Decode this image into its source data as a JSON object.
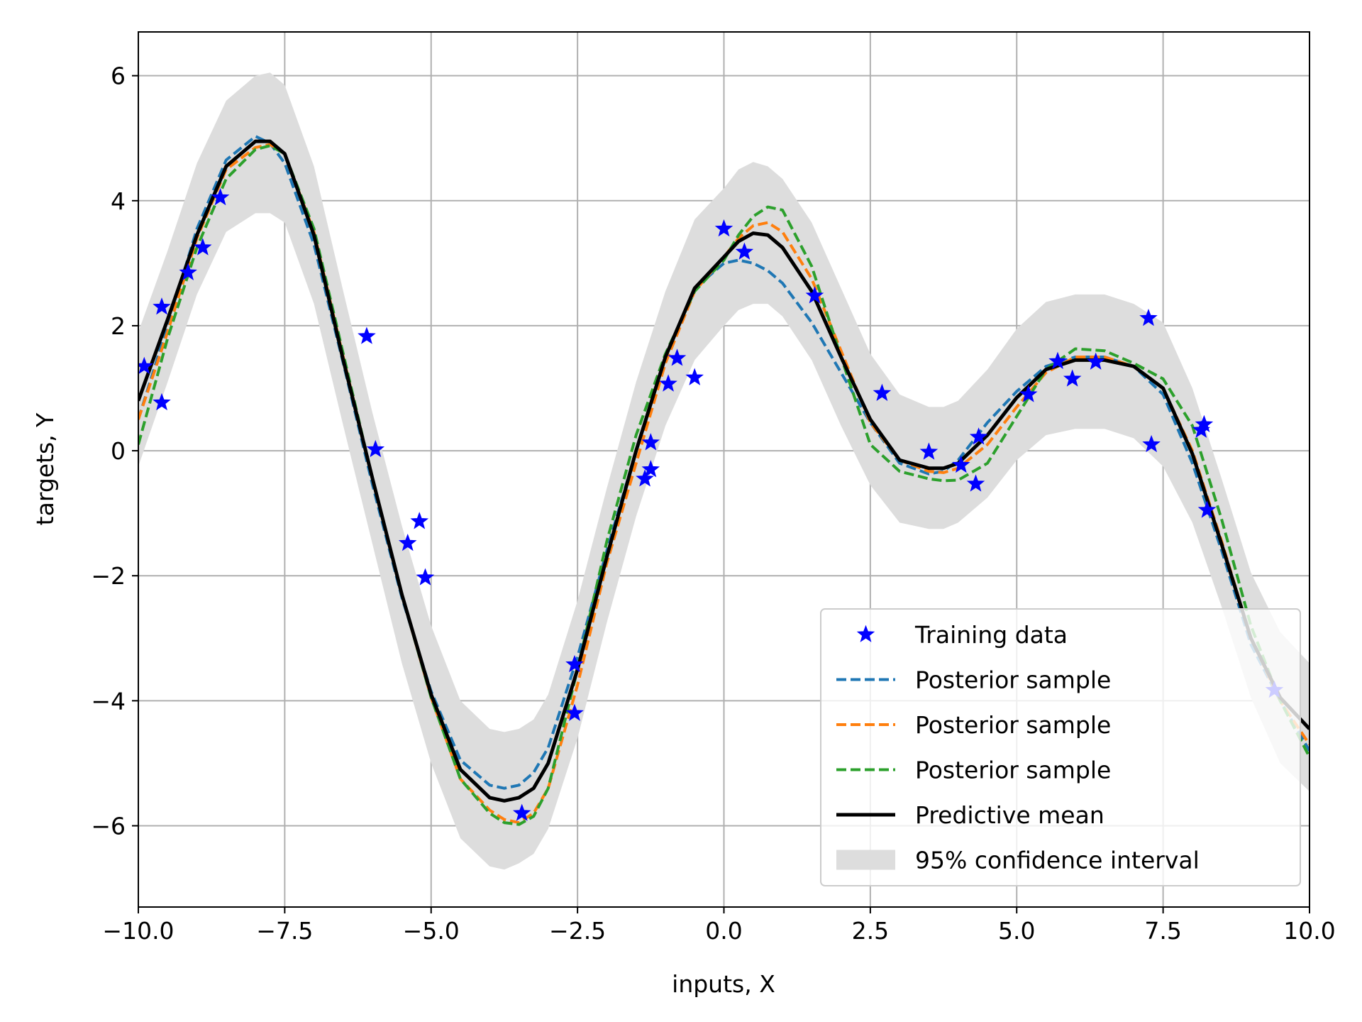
{
  "chart_data": {
    "type": "line",
    "title": "",
    "xlabel": "inputs, X",
    "ylabel": "targets, Y",
    "xlim": [
      -10,
      10
    ],
    "ylim": [
      -7.3,
      6.7
    ],
    "xticks": [
      -10,
      -7.5,
      -5,
      -2.5,
      0,
      2.5,
      5,
      7.5,
      10
    ],
    "xtick_labels": [
      "−10.0",
      "−7.5",
      "−5.0",
      "−2.5",
      "0.0",
      "2.5",
      "5.0",
      "7.5",
      "10.0"
    ],
    "yticks": [
      -6,
      -4,
      -2,
      0,
      2,
      4,
      6
    ],
    "ytick_labels": [
      "−6",
      "−4",
      "−2",
      "0",
      "2",
      "4",
      "6"
    ],
    "grid": true,
    "legend_position": "lower-right",
    "x": [
      -10,
      -9.5,
      -9,
      -8.5,
      -8,
      -7.75,
      -7.5,
      -7,
      -6.5,
      -6,
      -5.5,
      -5,
      -4.5,
      -4,
      -3.75,
      -3.5,
      -3.25,
      -3,
      -2.5,
      -2,
      -1.5,
      -1,
      -0.5,
      0,
      0.25,
      0.5,
      0.75,
      1,
      1.5,
      2,
      2.5,
      3,
      3.5,
      3.75,
      4,
      4.5,
      5,
      5.5,
      6,
      6.5,
      7,
      7.5,
      8,
      8.5,
      9,
      9.5,
      10
    ],
    "series": [
      {
        "name": "Training data",
        "kind": "scatter",
        "marker": "star",
        "color": "#0000ff",
        "points": [
          [
            -9.9,
            1.35
          ],
          [
            -9.6,
            2.3
          ],
          [
            -9.6,
            0.77
          ],
          [
            -9.15,
            2.85
          ],
          [
            -8.9,
            3.25
          ],
          [
            -8.6,
            4.05
          ],
          [
            -6.1,
            1.83
          ],
          [
            -5.95,
            0.02
          ],
          [
            -5.4,
            -1.48
          ],
          [
            -5.2,
            -1.13
          ],
          [
            -5.1,
            -2.03
          ],
          [
            -3.45,
            -5.8
          ],
          [
            -2.55,
            -3.42
          ],
          [
            -2.55,
            -4.2
          ],
          [
            -1.35,
            -0.45
          ],
          [
            -1.25,
            -0.3
          ],
          [
            -1.25,
            0.13
          ],
          [
            -0.95,
            1.07
          ],
          [
            -0.8,
            1.48
          ],
          [
            -0.5,
            1.17
          ],
          [
            0.0,
            3.55
          ],
          [
            0.35,
            3.18
          ],
          [
            1.55,
            2.48
          ],
          [
            2.7,
            0.92
          ],
          [
            3.5,
            -0.02
          ],
          [
            4.05,
            -0.23
          ],
          [
            4.3,
            -0.53
          ],
          [
            4.35,
            0.22
          ],
          [
            5.2,
            0.9
          ],
          [
            5.7,
            1.43
          ],
          [
            5.95,
            1.15
          ],
          [
            6.35,
            1.42
          ],
          [
            7.25,
            2.12
          ],
          [
            7.3,
            0.1
          ],
          [
            8.15,
            0.33
          ],
          [
            8.2,
            0.42
          ],
          [
            8.25,
            -0.95
          ],
          [
            9.4,
            -3.83
          ]
        ]
      },
      {
        "name": "Posterior sample",
        "kind": "line",
        "dash": "dashed",
        "color": "#1f77b4",
        "y": [
          0.5,
          2.0,
          3.55,
          4.65,
          5.03,
          4.92,
          4.6,
          3.3,
          1.4,
          -0.55,
          -2.35,
          -3.85,
          -4.95,
          -5.35,
          -5.4,
          -5.35,
          -5.15,
          -4.75,
          -3.3,
          -1.6,
          0.0,
          1.5,
          2.6,
          3.0,
          3.05,
          3.0,
          2.88,
          2.68,
          2.05,
          1.25,
          0.45,
          -0.2,
          -0.37,
          -0.33,
          -0.15,
          0.45,
          0.95,
          1.35,
          1.5,
          1.5,
          1.35,
          0.9,
          -0.2,
          -1.6,
          -3.1,
          -4.0,
          -4.8
        ]
      },
      {
        "name": "Posterior sample",
        "kind": "line",
        "dash": "dashed",
        "color": "#ff7f0e",
        "y": [
          0.5,
          1.9,
          3.4,
          4.5,
          4.85,
          4.9,
          4.75,
          3.5,
          1.5,
          -0.45,
          -2.3,
          -3.95,
          -5.25,
          -5.75,
          -5.9,
          -5.95,
          -5.8,
          -5.4,
          -3.75,
          -1.8,
          -0.2,
          1.4,
          2.55,
          3.1,
          3.4,
          3.6,
          3.65,
          3.5,
          2.75,
          1.6,
          0.45,
          -0.15,
          -0.33,
          -0.35,
          -0.28,
          0.1,
          0.7,
          1.25,
          1.5,
          1.5,
          1.35,
          1.0,
          0.0,
          -1.45,
          -3.0,
          -4.0,
          -4.7
        ]
      },
      {
        "name": "Posterior sample",
        "kind": "line",
        "dash": "dashed",
        "color": "#2ca02c",
        "y": [
          0.1,
          1.8,
          3.25,
          4.35,
          4.82,
          4.88,
          4.75,
          3.55,
          1.55,
          -0.45,
          -2.3,
          -3.95,
          -5.25,
          -5.8,
          -5.95,
          -5.98,
          -5.85,
          -5.4,
          -3.5,
          -1.45,
          0.25,
          1.55,
          2.55,
          3.05,
          3.45,
          3.75,
          3.9,
          3.85,
          2.95,
          1.5,
          0.1,
          -0.33,
          -0.45,
          -0.48,
          -0.47,
          -0.2,
          0.55,
          1.3,
          1.63,
          1.6,
          1.4,
          1.15,
          0.4,
          -1.1,
          -2.8,
          -4.0,
          -4.9
        ]
      },
      {
        "name": "Predictive mean",
        "kind": "line",
        "dash": "solid",
        "color": "#000000",
        "y": [
          0.8,
          2.1,
          3.45,
          4.55,
          4.95,
          4.95,
          4.75,
          3.45,
          1.45,
          -0.45,
          -2.3,
          -3.9,
          -5.1,
          -5.55,
          -5.6,
          -5.55,
          -5.4,
          -5.0,
          -3.5,
          -1.7,
          0.0,
          1.5,
          2.6,
          3.1,
          3.35,
          3.48,
          3.45,
          3.25,
          2.55,
          1.5,
          0.5,
          -0.15,
          -0.28,
          -0.28,
          -0.2,
          0.25,
          0.85,
          1.3,
          1.45,
          1.45,
          1.35,
          1.0,
          -0.05,
          -1.5,
          -3.0,
          -3.95,
          -4.45
        ]
      },
      {
        "name": "95% confidence interval",
        "kind": "band",
        "color": "#dddddd",
        "lower": [
          -0.25,
          1.1,
          2.5,
          3.5,
          3.8,
          3.8,
          3.65,
          2.35,
          0.4,
          -1.5,
          -3.4,
          -5.0,
          -6.2,
          -6.65,
          -6.7,
          -6.6,
          -6.45,
          -6.05,
          -4.6,
          -2.75,
          -1.05,
          0.4,
          1.45,
          2.0,
          2.25,
          2.35,
          2.35,
          2.15,
          1.45,
          0.4,
          -0.55,
          -1.15,
          -1.25,
          -1.25,
          -1.15,
          -0.75,
          -0.15,
          0.25,
          0.35,
          0.35,
          0.2,
          -0.25,
          -1.15,
          -2.5,
          -3.95,
          -5.0,
          -5.45
        ],
        "upper": [
          1.9,
          3.2,
          4.6,
          5.6,
          6.0,
          6.05,
          5.85,
          4.55,
          2.55,
          0.6,
          -1.2,
          -2.8,
          -4.0,
          -4.45,
          -4.5,
          -4.45,
          -4.3,
          -3.9,
          -2.4,
          -0.6,
          1.1,
          2.55,
          3.7,
          4.2,
          4.5,
          4.62,
          4.55,
          4.35,
          3.65,
          2.6,
          1.55,
          0.9,
          0.7,
          0.7,
          0.8,
          1.3,
          1.95,
          2.38,
          2.5,
          2.5,
          2.35,
          2.05,
          1.0,
          -0.45,
          -1.95,
          -2.9,
          -3.4
        ]
      }
    ]
  }
}
